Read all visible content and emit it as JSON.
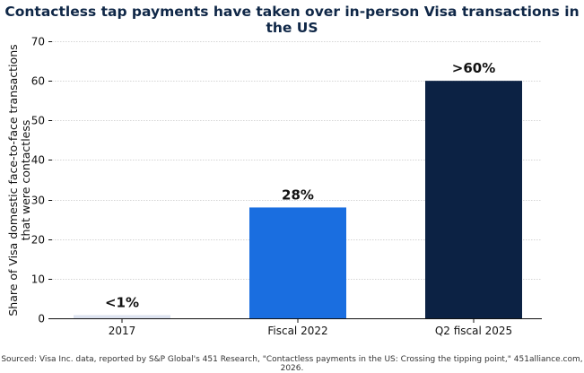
{
  "chart_data": {
    "type": "bar",
    "title": "Contactless tap payments have taken over in-person Visa transactions in the US",
    "ylabel_lines": [
      "Share of Visa domestic face-to-face transactions",
      "that were contactless"
    ],
    "xlabel": "",
    "categories": [
      "2017",
      "Fiscal 2022",
      "Q2 fiscal 2025"
    ],
    "values": [
      0.8,
      28,
      60
    ],
    "data_labels": [
      "<1%",
      "28%",
      ">60%"
    ],
    "colors": [
      "#dde3f0",
      "#1a6ee0",
      "#0c2244"
    ],
    "ylim": [
      0,
      70
    ],
    "yticks": [
      0,
      10,
      20,
      30,
      40,
      50,
      60,
      70
    ],
    "grid": true,
    "source": "Sourced: Visa Inc. data, reported by S&P Global's 451 Research, \"Contactless payments in the US: Crossing the tipping point,\" 451alliance.com, 2026."
  }
}
